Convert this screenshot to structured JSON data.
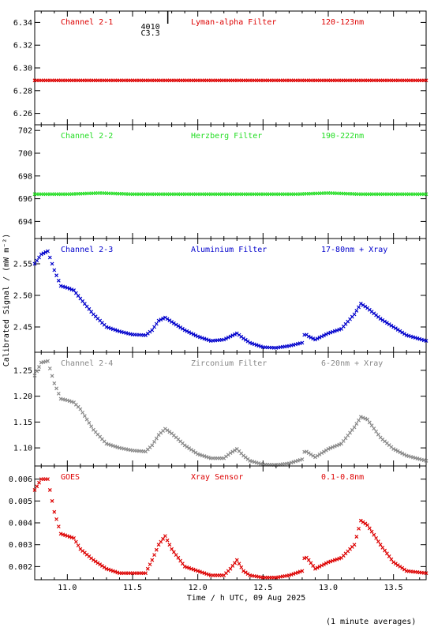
{
  "xaxis": {
    "label": "Time / h UTC, 09 Aug 2025",
    "range": [
      10.75,
      13.75
    ],
    "ticks": [
      11.0,
      11.5,
      12.0,
      12.5,
      13.0,
      13.5
    ],
    "tick_labels": [
      "11.0",
      "11.5",
      "12.0",
      "12.5",
      "13.0",
      "13.5"
    ]
  },
  "ylabel": "Calibrated Signal / (mW m⁻²)",
  "footer": "(1 minute averages)",
  "marker": {
    "x": 11.77,
    "label1": "4010",
    "label2": "C3.3"
  },
  "colors": {
    "red": "#dd0000",
    "green": "#22dd22",
    "blue": "#0000cc",
    "gray": "#888888"
  },
  "chart_data": [
    {
      "type": "scatter",
      "channel": "Channel 2-1",
      "filter": "Lyman-alpha Filter",
      "band": "120-123nm",
      "color": "#dd0000",
      "ylim": [
        6.25,
        6.35
      ],
      "yticks": [
        6.26,
        6.28,
        6.3,
        6.32,
        6.34
      ],
      "ytick_labels": [
        "6.26",
        "6.28",
        "6.30",
        "6.32",
        "6.34"
      ],
      "x": [
        10.75,
        11.0,
        11.25,
        11.5,
        11.75,
        12.0,
        12.25,
        12.5,
        12.75,
        13.0,
        13.25,
        13.5,
        13.75
      ],
      "y": [
        6.289,
        6.289,
        6.289,
        6.289,
        6.289,
        6.289,
        6.289,
        6.289,
        6.289,
        6.289,
        6.289,
        6.289,
        6.289
      ]
    },
    {
      "type": "scatter",
      "channel": "Channel 2-2",
      "filter": "Herzberg Filter",
      "band": "190-222nm",
      "color": "#22dd22",
      "ylim": [
        692.5,
        702.5
      ],
      "yticks": [
        694,
        696,
        698,
        700,
        702
      ],
      "ytick_labels": [
        "694",
        "696",
        "698",
        "700",
        "702"
      ],
      "x": [
        10.75,
        11.0,
        11.25,
        11.5,
        11.75,
        12.0,
        12.25,
        12.5,
        12.75,
        13.0,
        13.25,
        13.5,
        13.75
      ],
      "y": [
        696.4,
        696.4,
        696.5,
        696.4,
        696.4,
        696.4,
        696.4,
        696.4,
        696.4,
        696.5,
        696.4,
        696.4,
        696.4
      ]
    },
    {
      "type": "scatter",
      "channel": "Channel 2-3",
      "filter": "Aluminium Filter",
      "band": "17-80nm + Xray",
      "color": "#0000cc",
      "ylim": [
        2.41,
        2.59
      ],
      "yticks": [
        2.45,
        2.5,
        2.55
      ],
      "ytick_labels": [
        "2.45",
        "2.50",
        "2.55"
      ],
      "x": [
        10.75,
        10.8,
        10.85,
        10.9,
        10.95,
        11.0,
        11.05,
        11.1,
        11.2,
        11.3,
        11.4,
        11.5,
        11.6,
        11.65,
        11.7,
        11.75,
        11.8,
        11.9,
        12.0,
        12.1,
        12.2,
        12.25,
        12.3,
        12.35,
        12.4,
        12.5,
        12.6,
        12.7,
        12.8,
        12.82,
        12.85,
        12.9,
        13.0,
        13.1,
        13.2,
        13.25,
        13.3,
        13.4,
        13.5,
        13.6,
        13.75
      ],
      "y": [
        2.55,
        2.565,
        2.57,
        2.54,
        2.515,
        2.512,
        2.508,
        2.495,
        2.47,
        2.45,
        2.443,
        2.438,
        2.437,
        2.445,
        2.46,
        2.465,
        2.458,
        2.445,
        2.435,
        2.428,
        2.43,
        2.435,
        2.44,
        2.432,
        2.425,
        2.418,
        2.417,
        2.42,
        2.425,
        2.44,
        2.435,
        2.43,
        2.44,
        2.447,
        2.47,
        2.487,
        2.48,
        2.463,
        2.45,
        2.437,
        2.428
      ]
    },
    {
      "type": "scatter",
      "channel": "Channel 2-4",
      "filter": "Zirconium Filter",
      "band": "6-20nm + Xray",
      "color": "#888888",
      "ylim": [
        1.065,
        1.285
      ],
      "yticks": [
        1.1,
        1.15,
        1.2,
        1.25
      ],
      "ytick_labels": [
        "1.10",
        "1.15",
        "1.20",
        "1.25"
      ],
      "x": [
        10.75,
        10.8,
        10.85,
        10.9,
        10.95,
        11.0,
        11.05,
        11.1,
        11.2,
        11.3,
        11.4,
        11.5,
        11.6,
        11.65,
        11.7,
        11.75,
        11.8,
        11.9,
        12.0,
        12.1,
        12.2,
        12.25,
        12.3,
        12.35,
        12.4,
        12.5,
        12.6,
        12.7,
        12.8,
        12.82,
        12.85,
        12.9,
        13.0,
        13.1,
        13.2,
        13.25,
        13.3,
        13.4,
        13.5,
        13.6,
        13.75
      ],
      "y": [
        1.24,
        1.265,
        1.268,
        1.225,
        1.195,
        1.192,
        1.188,
        1.175,
        1.135,
        1.108,
        1.1,
        1.095,
        1.093,
        1.105,
        1.125,
        1.137,
        1.128,
        1.105,
        1.088,
        1.08,
        1.08,
        1.09,
        1.098,
        1.085,
        1.075,
        1.068,
        1.067,
        1.07,
        1.078,
        1.095,
        1.09,
        1.082,
        1.098,
        1.108,
        1.14,
        1.16,
        1.155,
        1.12,
        1.098,
        1.085,
        1.075
      ]
    },
    {
      "type": "scatter",
      "channel": "GOES",
      "filter": "Xray Sensor",
      "band": "0.1-0.8nm",
      "color": "#dd0000",
      "ylim": [
        0.0014,
        0.0066
      ],
      "yticks": [
        0.002,
        0.003,
        0.004,
        0.005,
        0.006
      ],
      "ytick_labels": [
        "0.002",
        "0.003",
        "0.004",
        "0.005",
        "0.006"
      ],
      "x": [
        10.75,
        10.8,
        10.85,
        10.9,
        10.95,
        11.0,
        11.05,
        11.1,
        11.2,
        11.3,
        11.4,
        11.5,
        11.6,
        11.65,
        11.7,
        11.75,
        11.8,
        11.9,
        12.0,
        12.1,
        12.2,
        12.25,
        12.3,
        12.35,
        12.4,
        12.5,
        12.6,
        12.7,
        12.8,
        12.82,
        12.85,
        12.9,
        13.0,
        13.1,
        13.2,
        13.25,
        13.3,
        13.4,
        13.5,
        13.6,
        13.75
      ],
      "y": [
        0.0055,
        0.006,
        0.006,
        0.0045,
        0.0035,
        0.0034,
        0.0033,
        0.0028,
        0.0023,
        0.0019,
        0.0017,
        0.0017,
        0.0017,
        0.0023,
        0.003,
        0.0034,
        0.0028,
        0.002,
        0.0018,
        0.0016,
        0.0016,
        0.0019,
        0.0023,
        0.0018,
        0.0016,
        0.0015,
        0.0015,
        0.0016,
        0.0018,
        0.0025,
        0.0023,
        0.0019,
        0.0022,
        0.0024,
        0.003,
        0.0041,
        0.0039,
        0.003,
        0.0022,
        0.0018,
        0.0017
      ]
    }
  ]
}
